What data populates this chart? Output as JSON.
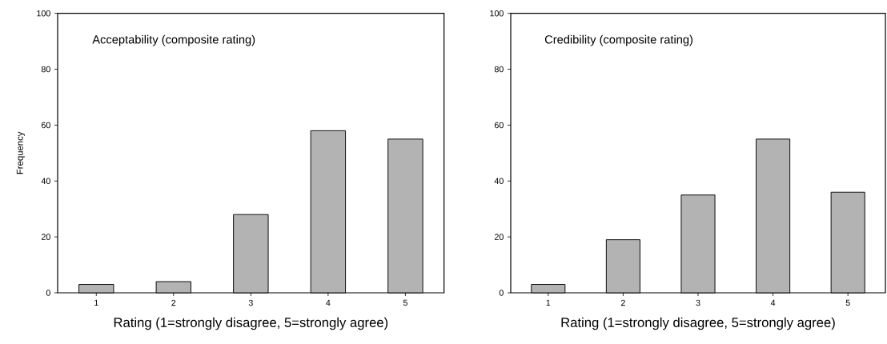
{
  "chart_data": [
    {
      "type": "bar",
      "title": "Acceptability (composite rating)",
      "xlabel": "Rating (1=strongly disagree, 5=strongly agree)",
      "ylabel": "Frequency",
      "categories": [
        "1",
        "2",
        "3",
        "4",
        "5"
      ],
      "values": [
        3,
        4,
        28,
        58,
        55
      ],
      "color": "#b3b3b3",
      "ylim": [
        0,
        100
      ],
      "yticks": [
        0,
        20,
        40,
        60,
        80,
        100
      ]
    },
    {
      "type": "bar",
      "title": "Credibility (composite rating)",
      "xlabel": "Rating (1=strongly disagree, 5=strongly agree)",
      "categories": [
        "1",
        "2",
        "3",
        "4",
        "5"
      ],
      "values": [
        3,
        19,
        35,
        55,
        36
      ],
      "color": "#b3b3b3",
      "ylim": [
        0,
        100
      ],
      "yticks": [
        0,
        20,
        40,
        60,
        80,
        100
      ]
    }
  ]
}
